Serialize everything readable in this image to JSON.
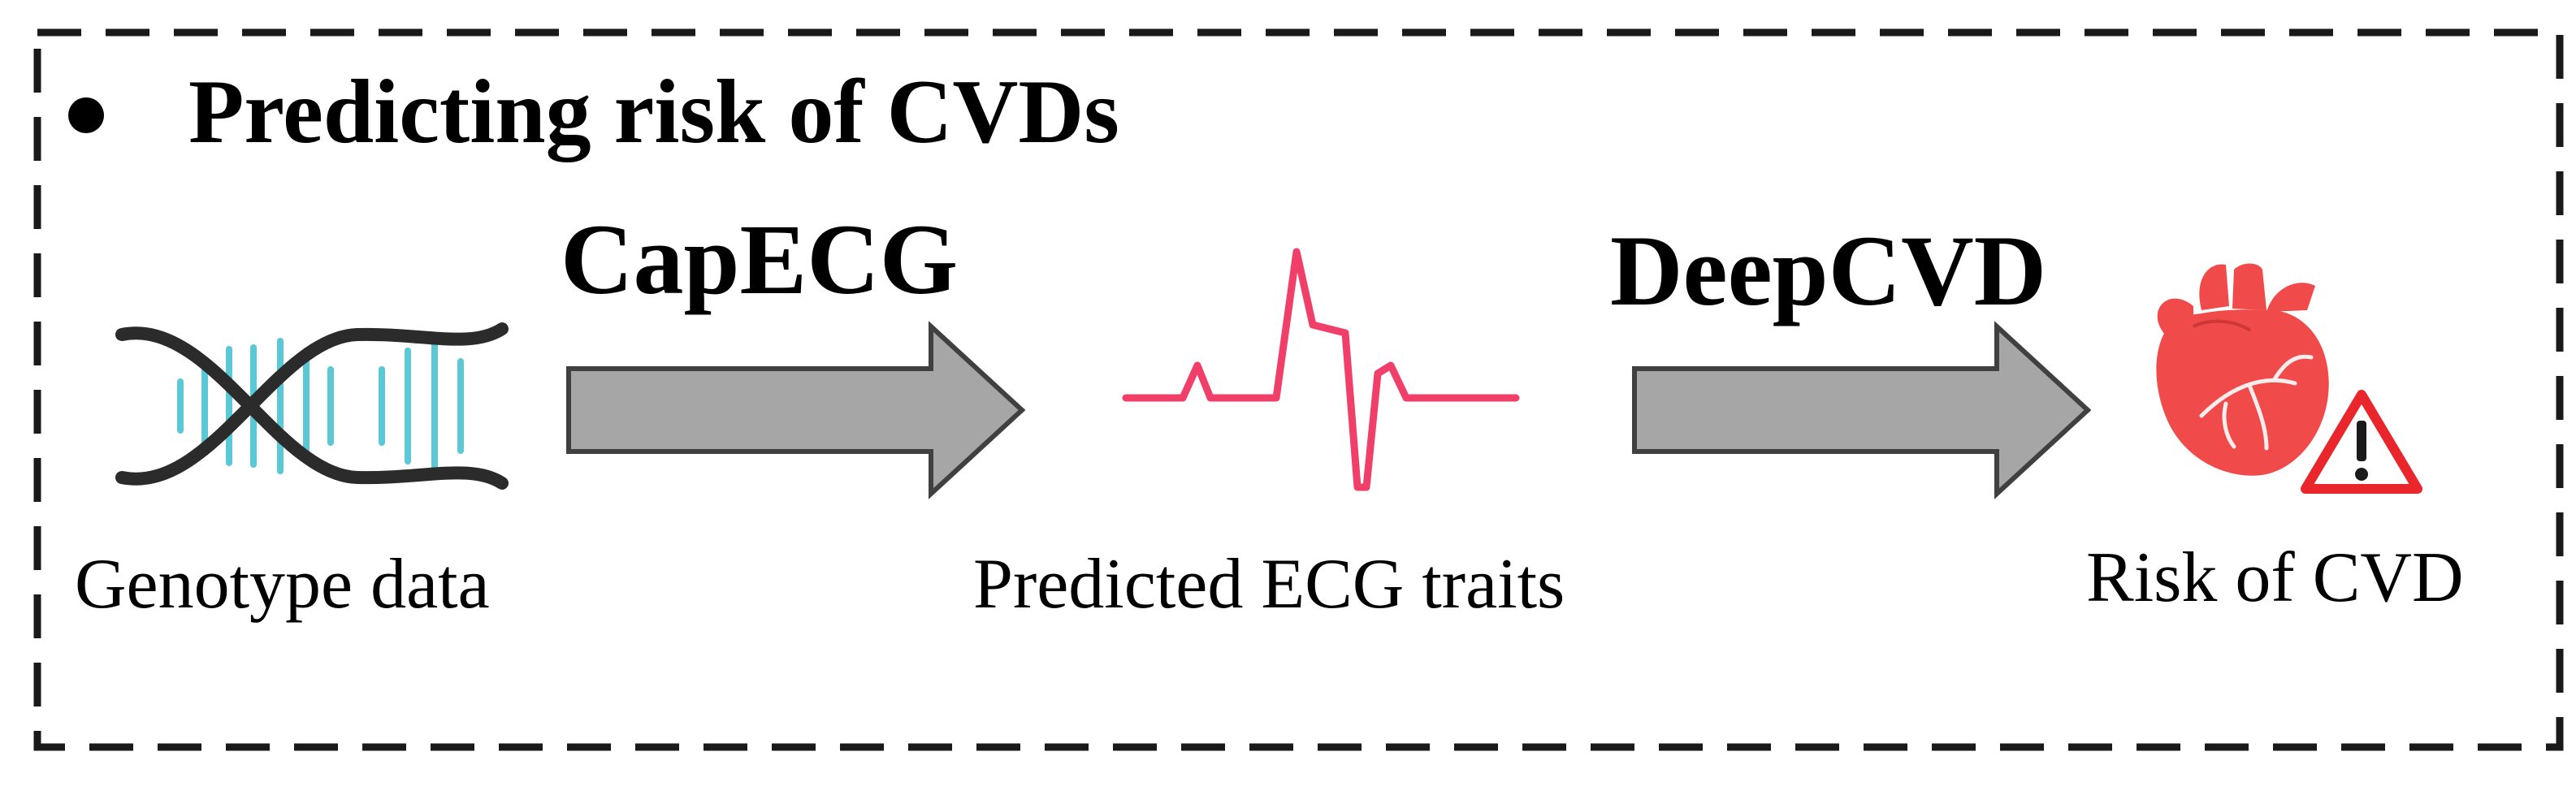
{
  "title": "Predicting risk of CVDs",
  "steps": [
    {
      "model": "CapECG"
    },
    {
      "model": "DeepCVD"
    }
  ],
  "nodes": {
    "input": {
      "label": "Genotype data",
      "icon": "dna-icon"
    },
    "middle": {
      "label": "Predicted ECG traits",
      "icon": "ecg-waveform-icon"
    },
    "output": {
      "label": "Risk of CVD",
      "icon": "heart-icon",
      "badge_icon": "warning-icon"
    }
  },
  "colors": {
    "arrow_fill": "#a6a6a6",
    "arrow_stroke": "#404040",
    "dna_strand": "#2b2b2b",
    "dna_rungs": "#5bc8d6",
    "ecg_line": "#f0406a",
    "heart": "#f04a4a",
    "warning": "#e8262b"
  }
}
